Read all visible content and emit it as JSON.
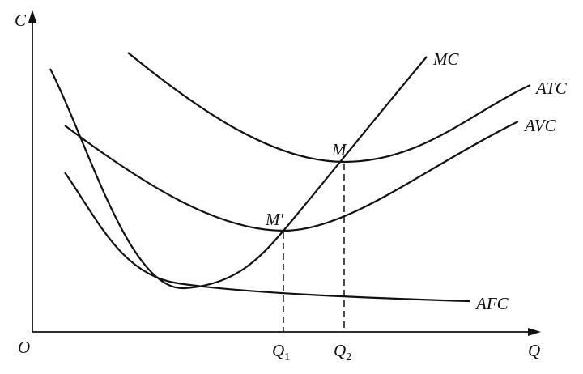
{
  "axes": {
    "y_label": "C",
    "x_label": "Q",
    "origin": "O"
  },
  "curves": {
    "mc": "MC",
    "atc": "ATC",
    "avc": "AVC",
    "afc": "AFC"
  },
  "points": {
    "m": "M",
    "m_prime": "M′"
  },
  "x_marks": [
    {
      "main": "Q",
      "sub": "1"
    },
    {
      "main": "Q",
      "sub": "2"
    }
  ]
}
